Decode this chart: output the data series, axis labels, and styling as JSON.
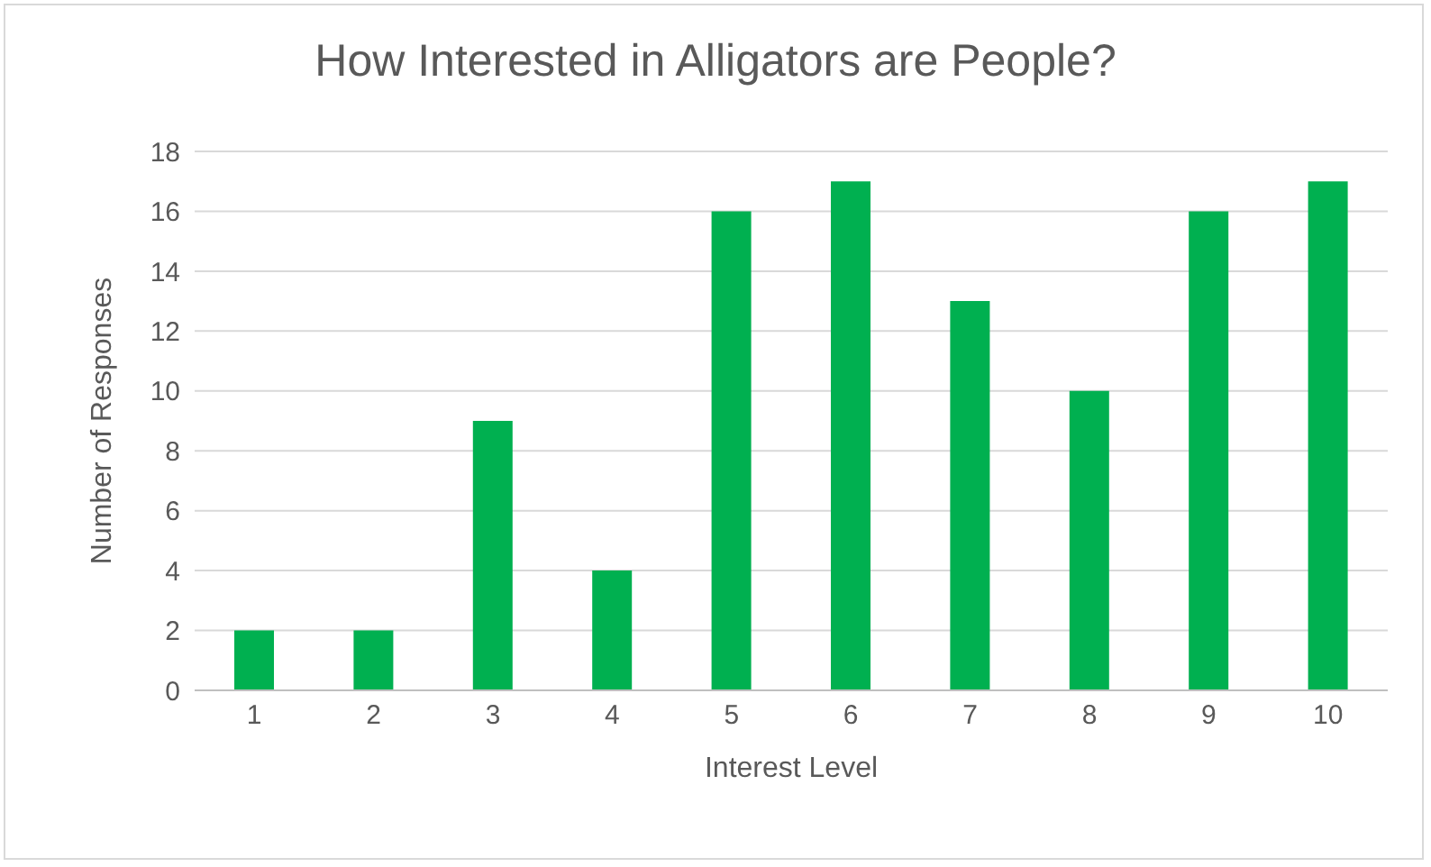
{
  "chart_data": {
    "type": "bar",
    "title": "How Interested in Alligators are People?",
    "xlabel": "Interest Level",
    "ylabel": "Number of Responses",
    "categories": [
      "1",
      "2",
      "3",
      "4",
      "5",
      "6",
      "7",
      "8",
      "9",
      "10"
    ],
    "values": [
      2,
      2,
      9,
      4,
      16,
      17,
      13,
      10,
      16,
      17
    ],
    "color": "#00b050",
    "ylim": [
      0,
      18
    ],
    "yticks": [
      0,
      2,
      4,
      6,
      8,
      10,
      12,
      14,
      16,
      18
    ],
    "grid": "y"
  }
}
